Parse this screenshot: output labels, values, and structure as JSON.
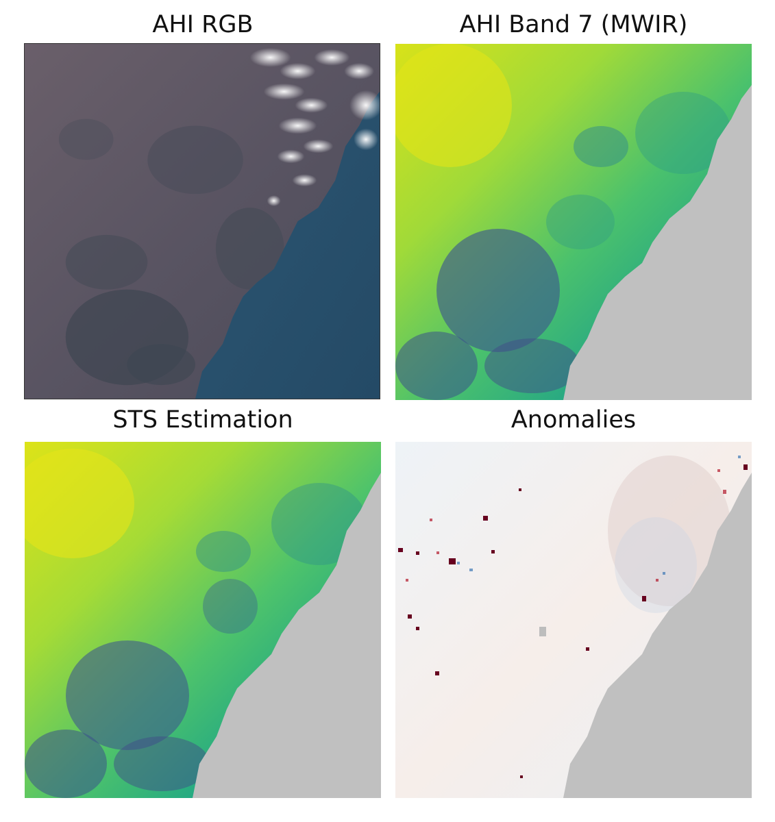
{
  "panels": [
    {
      "title": "AHI RGB"
    },
    {
      "title": "AHI Band 7 (MWIR)"
    },
    {
      "title": "STS Estimation"
    },
    {
      "title": "Anomalies"
    }
  ],
  "colors": {
    "masked_ocean": "#c0c0c0",
    "rgb_land": "#5a5562",
    "rgb_ocean": "#2f5570",
    "viridis_high": "#d5e21e",
    "viridis_mid": "#5ec962",
    "viridis_low": "#3b528b",
    "anomaly_positive": "#67001f",
    "anomaly_negative": "#2166ac",
    "anomaly_neutral": "#f2f4f6"
  }
}
